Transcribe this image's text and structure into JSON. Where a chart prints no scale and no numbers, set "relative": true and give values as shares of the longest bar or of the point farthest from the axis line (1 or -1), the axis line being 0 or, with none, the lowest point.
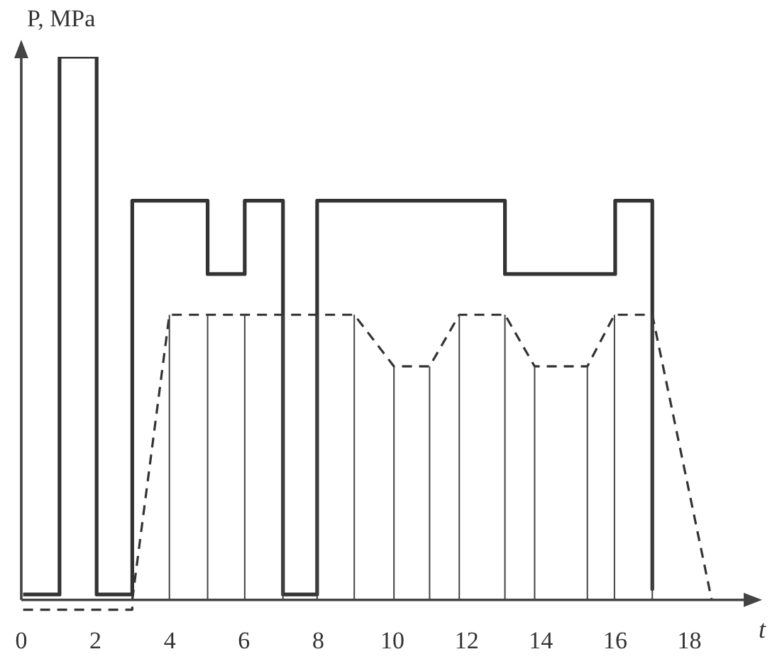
{
  "chart_data": {
    "type": "line",
    "ylabel": "P, MPa",
    "xlabel": "t",
    "relative": true,
    "xlim": [
      0,
      19.5
    ],
    "xticks": [
      0,
      2,
      4,
      6,
      8,
      10,
      12,
      14,
      16,
      18
    ],
    "series": [
      {
        "color": "#333333",
        "line_style": "solid",
        "x": [
          0.05,
          1.03,
          1.03,
          2.03,
          2.03,
          2.99,
          2.99,
          5.02,
          5.02,
          6.02,
          6.02,
          7.05,
          7.05,
          7.97,
          7.97,
          13.03,
          13.03,
          16.0,
          16.0,
          17.0,
          17.0
        ],
        "values": [
          0.01,
          0.01,
          1,
          1,
          0.01,
          0.01,
          0.735,
          0.735,
          0.6,
          0.6,
          0.735,
          0.735,
          0.01,
          0.01,
          0.735,
          0.735,
          0.6,
          0.6,
          0.735,
          0.735,
          0.02
        ]
      },
      {
        "color": "#333333",
        "line_style": "dashed",
        "x": [
          0.05,
          2.99,
          2.99,
          3.99,
          5.02,
          6.02,
          7.05,
          7.97,
          8.97,
          10.04,
          11.0,
          11.8,
          13.03,
          13.83,
          15.25,
          15.98,
          17.0,
          18.6
        ],
        "values": [
          -0.018,
          -0.018,
          0,
          0.525,
          0.525,
          0.525,
          0.525,
          0.525,
          0.525,
          0.43,
          0.43,
          0.525,
          0.525,
          0.43,
          0.43,
          0.525,
          0.525,
          0
        ]
      }
    ]
  }
}
